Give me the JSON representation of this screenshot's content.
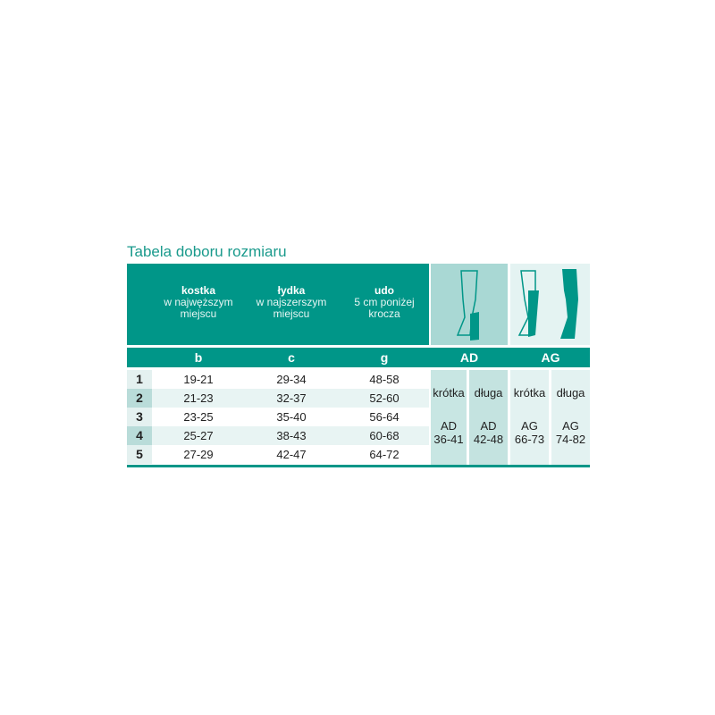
{
  "title": "Tabela doboru rozmiaru",
  "header": [
    {
      "bold": "kostka",
      "text": "w najwęższym miejscu"
    },
    {
      "bold": "łydka",
      "text": "w najszerszym miejscu"
    },
    {
      "bold": "udo",
      "text": "5 cm poniżej krocza"
    }
  ],
  "letters": [
    "b",
    "c",
    "g"
  ],
  "groups": [
    "AD",
    "AG"
  ],
  "rows": [
    {
      "size": "1",
      "b": "19-21",
      "c": "29-34",
      "g": "48-58"
    },
    {
      "size": "2",
      "b": "21-23",
      "c": "32-37",
      "g": "52-60"
    },
    {
      "size": "3",
      "b": "23-25",
      "c": "35-40",
      "g": "56-64"
    },
    {
      "size": "4",
      "b": "25-27",
      "c": "38-43",
      "g": "60-68"
    },
    {
      "size": "5",
      "b": "27-29",
      "c": "42-47",
      "g": "64-72"
    }
  ],
  "variants": [
    {
      "length": "krótka",
      "code": "AD",
      "range": "36-41"
    },
    {
      "length": "długa",
      "code": "AD",
      "range": "42-48"
    },
    {
      "length": "krótka",
      "code": "AG",
      "range": "66-73"
    },
    {
      "length": "długa",
      "code": "AG",
      "range": "74-82"
    }
  ],
  "colors": {
    "teal": "#009688",
    "light_teal": "#a9d8d4",
    "pale_teal": "#e4f3f2"
  },
  "icons": [
    "knee-stocking-icon",
    "thigh-stocking-icon",
    "tights-icon"
  ]
}
